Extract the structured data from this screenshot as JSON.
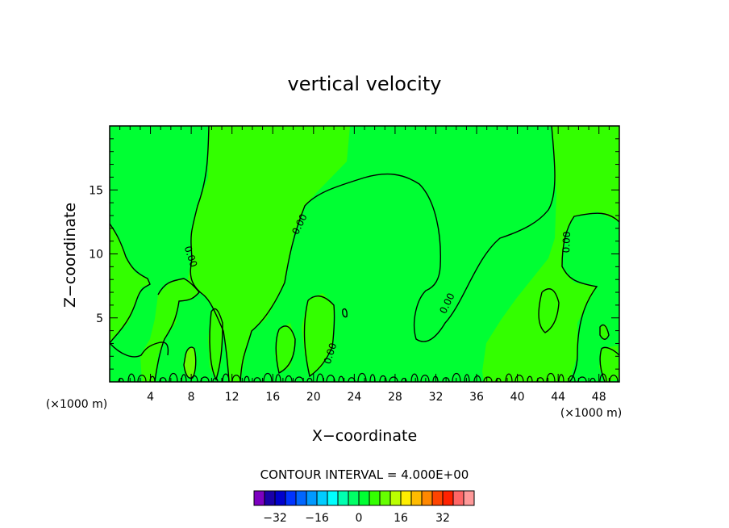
{
  "chart_data": {
    "type": "contour",
    "title": "vertical velocity",
    "xlabel": "X−coordinate",
    "ylabel": "Z−coordinate",
    "x_unit_left": "(×1000 m)",
    "x_unit_right": "(×1000 m)",
    "xlim": [
      0,
      50
    ],
    "ylim": [
      0,
      20
    ],
    "x_ticks": [
      4,
      8,
      12,
      16,
      20,
      24,
      28,
      32,
      36,
      40,
      44,
      48
    ],
    "x_tick_labels": [
      "4",
      "8",
      "12",
      "16",
      "20",
      "24",
      "28",
      "32",
      "36",
      "40",
      "44",
      "48"
    ],
    "y_ticks": [
      5,
      10,
      15
    ],
    "y_tick_labels": [
      "5",
      "10",
      "15"
    ],
    "contour_label": "0.00",
    "contour_interval_text": "CONTOUR INTERVAL = 4.000E+00",
    "contour_interval": 4.0,
    "colorbar": {
      "levels": [
        -36,
        -32,
        -28,
        -24,
        -20,
        -16,
        -12,
        -8,
        -4,
        0,
        4,
        8,
        12,
        16,
        20,
        24,
        28,
        32,
        36
      ],
      "colors": [
        "#7d00c0",
        "#1a00a8",
        "#0000cc",
        "#0033ff",
        "#0066ff",
        "#0099ff",
        "#00ccff",
        "#00ffff",
        "#00ffb0",
        "#00ff66",
        "#00ff33",
        "#33ff00",
        "#66ff00",
        "#bbff00",
        "#ffee00",
        "#ffbb00",
        "#ff8800",
        "#ff4400",
        "#ff2200",
        "#ff6666",
        "#ff9999"
      ],
      "tick_values": [
        -32,
        -16,
        0,
        16,
        32
      ],
      "tick_labels": [
        "−32",
        "−16",
        "0",
        "16",
        "32"
      ]
    },
    "field_colors": {
      "negative_region": "#00ff33",
      "positive_region": "#33ff00",
      "strong_positive": "#66ff00"
    }
  }
}
